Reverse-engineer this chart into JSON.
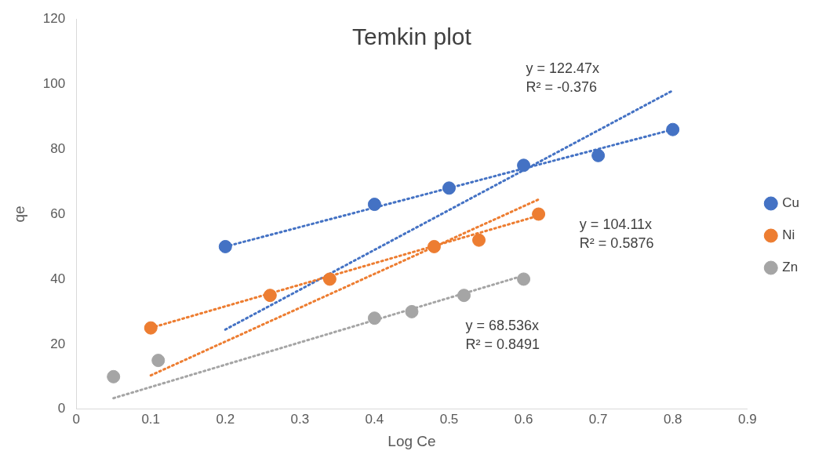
{
  "chart_data": {
    "type": "scatter",
    "title": "Temkin plot",
    "xlabel": "Log Ce",
    "ylabel": "qe",
    "xlim": [
      0,
      0.9
    ],
    "xticks": [
      0,
      0.1,
      0.2,
      0.3,
      0.4,
      0.5,
      0.6,
      0.7,
      0.8,
      0.9
    ],
    "ylim": [
      0,
      120
    ],
    "yticks": [
      0,
      20,
      40,
      60,
      80,
      100,
      120
    ],
    "grid": false,
    "legend": "right",
    "marker": "circle",
    "series": [
      {
        "name": "Cu",
        "color": "#4472c4",
        "x": [
          0.2,
          0.4,
          0.5,
          0.6,
          0.7,
          0.8
        ],
        "values": [
          50,
          63,
          68,
          75,
          78,
          86
        ]
      },
      {
        "name": "Ni",
        "color": "#ed7d31",
        "x": [
          0.1,
          0.26,
          0.34,
          0.48,
          0.54,
          0.62
        ],
        "values": [
          25,
          35,
          40,
          50,
          52,
          60
        ]
      },
      {
        "name": "Zn",
        "color": "#a5a5a5",
        "x": [
          0.05,
          0.11,
          0.4,
          0.45,
          0.52,
          0.6
        ],
        "values": [
          10,
          15,
          28,
          30,
          35,
          40
        ]
      },
      {
        "type": "line",
        "color": "#4472c4",
        "x": [
          0.2,
          0.8
        ],
        "values": [
          50,
          86
        ],
        "marker": "none",
        "line_style": "dotted"
      },
      {
        "type": "line",
        "color": "#ed7d31",
        "x": [
          0.1,
          0.62
        ],
        "values": [
          25,
          59.5
        ],
        "marker": "none",
        "line_style": "dotted"
      },
      {
        "type": "line",
        "color": "#4472c4",
        "x": [
          0.2,
          0.8
        ],
        "values": [
          24.5,
          98
        ],
        "marker": "none",
        "line_style": "dotted"
      },
      {
        "type": "line",
        "color": "#ed7d31",
        "x": [
          0.1,
          0.62
        ],
        "values": [
          10.4,
          64.5
        ],
        "marker": "none",
        "line_style": "dotted"
      },
      {
        "type": "line",
        "color": "#a5a5a5",
        "x": [
          0.05,
          0.6
        ],
        "values": [
          3.4,
          41.1
        ],
        "marker": "none",
        "line_style": "dotted"
      }
    ],
    "annotations": [
      "y = 122.47x\nR² = -0.376",
      "y = 104.11x\nR² = 0.5876",
      "y = 68.536x\nR² = 0.8491"
    ]
  }
}
